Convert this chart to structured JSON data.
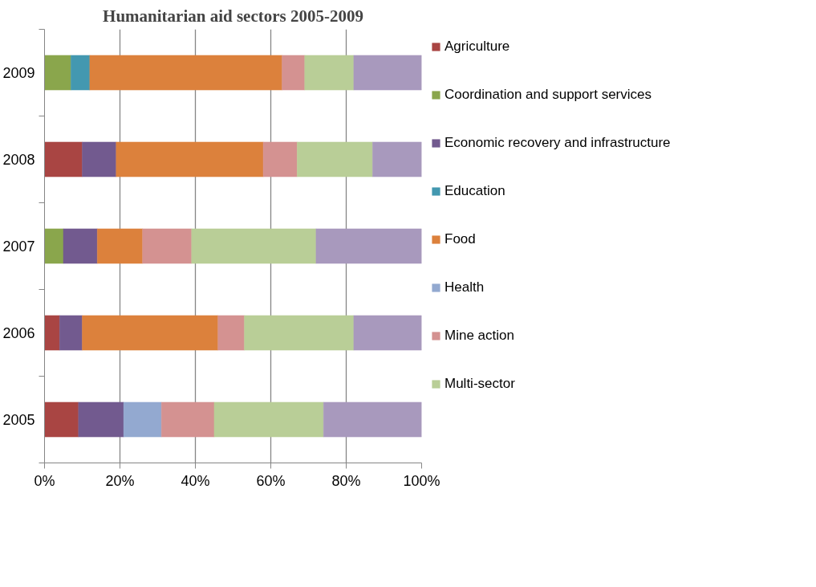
{
  "chart_data": {
    "type": "bar",
    "orientation": "horizontal",
    "stacked": true,
    "title": "Humanitarian aid sectors 2005-2009",
    "categories": [
      "2009",
      "2008",
      "2007",
      "2006",
      "2005"
    ],
    "series": [
      {
        "name": "Agriculture",
        "color": "#a94543",
        "values": [
          null,
          10,
          null,
          4,
          9
        ]
      },
      {
        "name": "Coordination and support services",
        "color": "#8aa64c",
        "values": [
          7,
          null,
          5,
          null,
          null
        ]
      },
      {
        "name": "Economic recovery and infrastructure",
        "color": "#725a8f",
        "values": [
          null,
          9,
          9,
          6,
          12
        ]
      },
      {
        "name": "Education",
        "color": "#4398b0",
        "values": [
          5,
          null,
          null,
          null,
          null
        ]
      },
      {
        "name": "Food",
        "color": "#dc813c",
        "values": [
          51,
          39,
          12,
          36,
          null
        ]
      },
      {
        "name": "Health",
        "color": "#93a9d0",
        "values": [
          null,
          null,
          null,
          null,
          10
        ]
      },
      {
        "name": "Mine action",
        "color": "#d49291",
        "values": [
          6,
          9,
          13,
          7,
          14
        ]
      },
      {
        "name": "Multi-sector",
        "color": "#b9ce97",
        "values": [
          13,
          20,
          33,
          29,
          29
        ]
      },
      {
        "color": "#a899bd",
        "values": [
          18,
          13,
          28,
          18,
          26
        ]
      }
    ],
    "xlim": [
      0,
      100
    ],
    "xticks": [
      {
        "value": 0,
        "label": "0%"
      },
      {
        "value": 20,
        "label": "20%"
      },
      {
        "value": 40,
        "label": "40%"
      },
      {
        "value": 60,
        "label": "60%"
      },
      {
        "value": 80,
        "label": "80%"
      },
      {
        "value": 100,
        "label": "100%"
      }
    ],
    "grid": "x",
    "legend": "right"
  }
}
